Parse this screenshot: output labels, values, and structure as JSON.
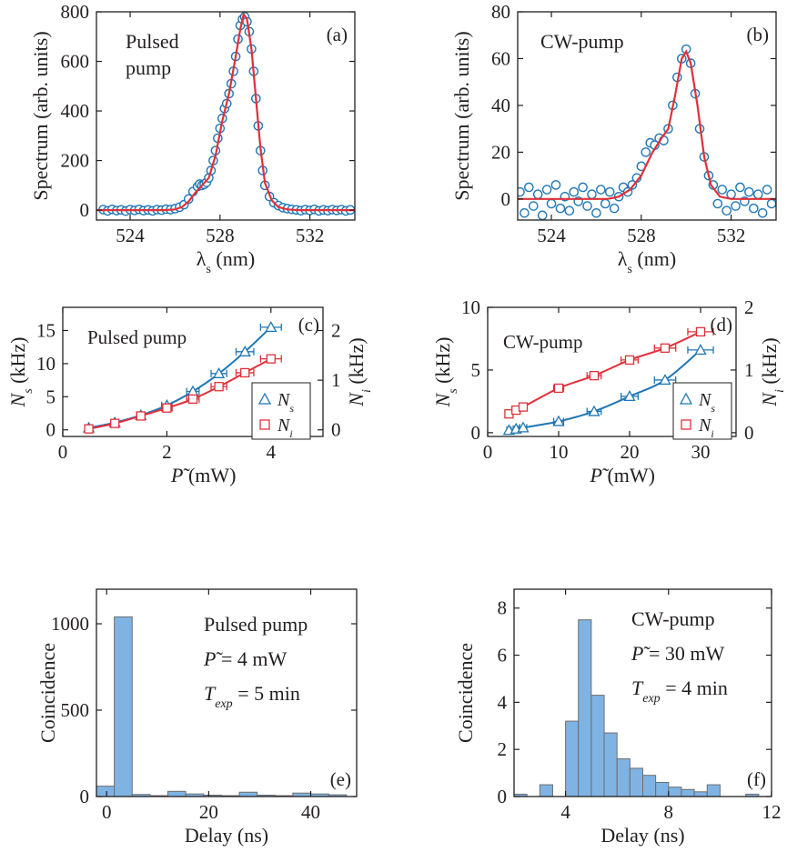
{
  "colors": {
    "blue": "#1f77b4",
    "red": "#e0303a",
    "bar": "#7fb3e3",
    "bar_edge": "#6e6e6e",
    "ink": "#231f20"
  },
  "chart_data": [
    {
      "type": "scatter",
      "panel": "(a)",
      "title": "Pulsed pump",
      "xlabel": "λs (nm)",
      "ylabel": "Spectrum (arb. units)",
      "xlim": [
        522.5,
        534
      ],
      "ylim": [
        -40,
        800
      ],
      "xticks": [
        524,
        528,
        532
      ],
      "yticks": [
        0,
        200,
        400,
        600,
        800
      ],
      "data": [
        [
          522.8,
          2
        ],
        [
          523.0,
          -3
        ],
        [
          523.2,
          3
        ],
        [
          523.4,
          -2
        ],
        [
          523.6,
          1
        ],
        [
          523.8,
          -4
        ],
        [
          524.0,
          2
        ],
        [
          524.2,
          -1
        ],
        [
          524.4,
          3
        ],
        [
          524.6,
          -2
        ],
        [
          524.8,
          1
        ],
        [
          525.0,
          -3
        ],
        [
          525.2,
          2
        ],
        [
          525.4,
          0
        ],
        [
          525.6,
          4
        ],
        [
          525.8,
          2
        ],
        [
          526.0,
          6
        ],
        [
          526.2,
          12
        ],
        [
          526.4,
          22
        ],
        [
          526.6,
          45
        ],
        [
          526.8,
          75
        ],
        [
          527.0,
          95
        ],
        [
          527.1,
          105
        ],
        [
          527.2,
          100
        ],
        [
          527.3,
          104
        ],
        [
          527.4,
          112
        ],
        [
          527.5,
          130
        ],
        [
          527.6,
          160
        ],
        [
          527.7,
          200
        ],
        [
          527.8,
          240
        ],
        [
          527.9,
          290
        ],
        [
          528.0,
          330
        ],
        [
          528.1,
          370
        ],
        [
          528.2,
          410
        ],
        [
          528.3,
          430
        ],
        [
          528.4,
          470
        ],
        [
          528.5,
          510
        ],
        [
          528.6,
          560
        ],
        [
          528.7,
          620
        ],
        [
          528.8,
          690
        ],
        [
          528.9,
          745
        ],
        [
          529.0,
          770
        ],
        [
          529.1,
          780
        ],
        [
          529.2,
          760
        ],
        [
          529.3,
          720
        ],
        [
          529.4,
          650
        ],
        [
          529.5,
          560
        ],
        [
          529.6,
          450
        ],
        [
          529.7,
          340
        ],
        [
          529.8,
          240
        ],
        [
          529.9,
          160
        ],
        [
          530.0,
          100
        ],
        [
          530.2,
          55
        ],
        [
          530.4,
          30
        ],
        [
          530.6,
          18
        ],
        [
          530.8,
          10
        ],
        [
          531.0,
          6
        ],
        [
          531.2,
          3
        ],
        [
          531.4,
          1
        ],
        [
          531.6,
          -2
        ],
        [
          531.8,
          2
        ],
        [
          532.0,
          -1
        ],
        [
          532.2,
          3
        ],
        [
          532.4,
          -3
        ],
        [
          532.6,
          1
        ],
        [
          532.8,
          -2
        ],
        [
          533.0,
          2
        ],
        [
          533.2,
          -1
        ],
        [
          533.4,
          2
        ],
        [
          533.6,
          -3
        ],
        [
          533.8,
          1
        ]
      ],
      "fit": [
        [
          522.5,
          0
        ],
        [
          525.5,
          0
        ],
        [
          526.0,
          3
        ],
        [
          526.3,
          12
        ],
        [
          526.6,
          35
        ],
        [
          526.9,
          70
        ],
        [
          527.2,
          100
        ],
        [
          527.5,
          130
        ],
        [
          527.8,
          220
        ],
        [
          528.1,
          360
        ],
        [
          528.4,
          470
        ],
        [
          528.7,
          620
        ],
        [
          528.9,
          730
        ],
        [
          529.05,
          790
        ],
        [
          529.2,
          770
        ],
        [
          529.4,
          650
        ],
        [
          529.6,
          450
        ],
        [
          529.8,
          250
        ],
        [
          530.0,
          110
        ],
        [
          530.3,
          40
        ],
        [
          530.6,
          12
        ],
        [
          531.0,
          3
        ],
        [
          531.5,
          0
        ],
        [
          534.0,
          0
        ]
      ]
    },
    {
      "type": "scatter",
      "panel": "(b)",
      "title": "CW-pump",
      "xlabel": "λs (nm)",
      "ylabel": "Spectrum (arb. units)",
      "xlim": [
        522.5,
        534
      ],
      "ylim": [
        -9,
        80
      ],
      "xticks": [
        524,
        528,
        532
      ],
      "yticks": [
        0,
        20,
        40,
        60,
        80
      ],
      "data": [
        [
          522.6,
          3
        ],
        [
          522.8,
          -6
        ],
        [
          523.0,
          5
        ],
        [
          523.2,
          -3
        ],
        [
          523.4,
          2
        ],
        [
          523.6,
          -7
        ],
        [
          523.8,
          4
        ],
        [
          524.0,
          -2
        ],
        [
          524.2,
          6
        ],
        [
          524.4,
          -4
        ],
        [
          524.6,
          1
        ],
        [
          524.8,
          -5
        ],
        [
          525.0,
          3
        ],
        [
          525.2,
          -1
        ],
        [
          525.4,
          5
        ],
        [
          525.6,
          -3
        ],
        [
          525.8,
          2
        ],
        [
          526.0,
          -6
        ],
        [
          526.2,
          4
        ],
        [
          526.4,
          -2
        ],
        [
          526.6,
          3
        ],
        [
          526.8,
          -4
        ],
        [
          527.0,
          1
        ],
        [
          527.2,
          5
        ],
        [
          527.4,
          3
        ],
        [
          527.6,
          6
        ],
        [
          527.8,
          9
        ],
        [
          528.0,
          14
        ],
        [
          528.2,
          20
        ],
        [
          528.4,
          24
        ],
        [
          528.6,
          23
        ],
        [
          528.8,
          26
        ],
        [
          529.0,
          25
        ],
        [
          529.2,
          30
        ],
        [
          529.4,
          40
        ],
        [
          529.6,
          52
        ],
        [
          529.8,
          60
        ],
        [
          530.0,
          64
        ],
        [
          530.2,
          58
        ],
        [
          530.4,
          45
        ],
        [
          530.6,
          30
        ],
        [
          530.8,
          18
        ],
        [
          531.0,
          10
        ],
        [
          531.2,
          6
        ],
        [
          531.4,
          -2
        ],
        [
          531.6,
          4
        ],
        [
          531.8,
          -5
        ],
        [
          532.0,
          2
        ],
        [
          532.2,
          -3
        ],
        [
          532.4,
          5
        ],
        [
          532.6,
          -1
        ],
        [
          532.8,
          3
        ],
        [
          533.0,
          -4
        ],
        [
          533.2,
          2
        ],
        [
          533.4,
          -6
        ],
        [
          533.6,
          4
        ],
        [
          533.8,
          -2
        ]
      ],
      "fit": [
        [
          522.5,
          0
        ],
        [
          526.5,
          0
        ],
        [
          527.0,
          1
        ],
        [
          527.5,
          4
        ],
        [
          528.0,
          10
        ],
        [
          528.5,
          20
        ],
        [
          528.9,
          26
        ],
        [
          529.2,
          30
        ],
        [
          529.5,
          44
        ],
        [
          529.8,
          60
        ],
        [
          530.0,
          63
        ],
        [
          530.2,
          58
        ],
        [
          530.5,
          40
        ],
        [
          530.8,
          18
        ],
        [
          531.1,
          6
        ],
        [
          531.5,
          1
        ],
        [
          532.0,
          0
        ],
        [
          534.0,
          0
        ]
      ]
    },
    {
      "type": "scatter",
      "panel": "(c)",
      "title": "Pulsed pump",
      "xlabel": "P̃ (mW)",
      "ylabel": "Ns (kHz)",
      "y2label": "Ni (kHz)",
      "xlim": [
        0,
        5
      ],
      "ylim": [
        -1,
        18.5
      ],
      "y2lim": [
        -0.133,
        2.467
      ],
      "xticks": [
        0,
        2,
        4
      ],
      "yticks": [
        0,
        5,
        10,
        15
      ],
      "y2ticks": [
        0,
        1,
        2
      ],
      "series": [
        {
          "name": "Ns",
          "axis": "left",
          "marker": "triangle",
          "x": [
            0.5,
            1.0,
            1.5,
            2.0,
            2.5,
            3.0,
            3.5,
            4.0
          ],
          "y": [
            0.3,
            1.1,
            2.2,
            3.7,
            5.8,
            8.5,
            11.8,
            15.5
          ],
          "xerr": [
            0.05,
            0.06,
            0.08,
            0.1,
            0.12,
            0.15,
            0.17,
            0.2
          ]
        },
        {
          "name": "Ni",
          "axis": "right",
          "marker": "square",
          "x": [
            0.5,
            1.0,
            1.5,
            2.0,
            2.5,
            3.0,
            3.5,
            4.0
          ],
          "y": [
            0.02,
            0.13,
            0.28,
            0.44,
            0.62,
            0.87,
            1.15,
            1.43
          ],
          "xerr": [
            0.05,
            0.06,
            0.08,
            0.1,
            0.12,
            0.15,
            0.17,
            0.2
          ]
        }
      ]
    },
    {
      "type": "scatter",
      "panel": "(d)",
      "title": "CW-pump",
      "xlabel": "P̃ (mW)",
      "ylabel": "Ns (kHz)",
      "y2label": "Ni (kHz)",
      "xlim": [
        0,
        35
      ],
      "ylim": [
        -0.3,
        10
      ],
      "y2lim": [
        -0.06,
        2
      ],
      "xticks": [
        0,
        10,
        20,
        30
      ],
      "yticks": [
        0,
        5,
        10
      ],
      "y2ticks": [
        0,
        1,
        2
      ],
      "series": [
        {
          "name": "Ns",
          "axis": "left",
          "marker": "triangle",
          "x": [
            3,
            4,
            5,
            10,
            15,
            20,
            25,
            30
          ],
          "y": [
            0.2,
            0.3,
            0.4,
            0.9,
            1.7,
            2.9,
            4.2,
            6.6
          ],
          "xerr": [
            0.3,
            0.4,
            0.5,
            0.7,
            1.0,
            1.2,
            1.5,
            1.8
          ]
        },
        {
          "name": "Ni",
          "axis": "right",
          "marker": "square",
          "x": [
            3,
            4,
            5,
            10,
            15,
            20,
            25,
            30
          ],
          "y": [
            0.3,
            0.36,
            0.41,
            0.71,
            0.91,
            1.16,
            1.35,
            1.61
          ],
          "xerr": [
            0.3,
            0.4,
            0.5,
            0.7,
            1.0,
            1.2,
            1.5,
            1.8
          ]
        }
      ]
    },
    {
      "type": "bar",
      "panel": "(e)",
      "annotation": [
        "Pulsed pump",
        "P̃ = 4 mW",
        "Texp = 5 min"
      ],
      "xlabel": "Delay (ns)",
      "ylabel": "Coincidence",
      "xlim": [
        -2,
        49
      ],
      "ylim": [
        0,
        1200
      ],
      "xticks": [
        0,
        20,
        40
      ],
      "yticks": [
        0,
        500,
        1000
      ],
      "bin_width": 3.5,
      "bins": [
        -2,
        1.5,
        5,
        8.5,
        12,
        15.5,
        19,
        22.5,
        26,
        29.5,
        33,
        36.5,
        40,
        43.5
      ],
      "values": [
        60,
        1040,
        12,
        5,
        30,
        15,
        8,
        5,
        25,
        8,
        5,
        20,
        15,
        10
      ]
    },
    {
      "type": "bar",
      "panel": "(f)",
      "annotation": [
        "CW-pump",
        "P̃ = 30 mW",
        "Texp = 4 min"
      ],
      "xlabel": "Delay (ns)",
      "ylabel": "Coincidence",
      "xlim": [
        2,
        12
      ],
      "ylim": [
        0,
        8.8
      ],
      "xticks": [
        4,
        8,
        12
      ],
      "yticks": [
        0,
        2,
        4,
        6,
        8
      ],
      "bin_width": 0.5,
      "bins": [
        2.0,
        2.5,
        3.0,
        3.5,
        4.0,
        4.5,
        5.0,
        5.5,
        6.0,
        6.5,
        7.0,
        7.5,
        8.0,
        8.5,
        9.0,
        9.5,
        10.0,
        10.5,
        11.0
      ],
      "values": [
        0.1,
        0,
        0.5,
        0,
        3.2,
        7.5,
        4.3,
        2.7,
        1.6,
        1.2,
        0.9,
        0.6,
        0.4,
        0.3,
        0.2,
        0.5,
        0,
        0,
        0.1
      ]
    }
  ]
}
